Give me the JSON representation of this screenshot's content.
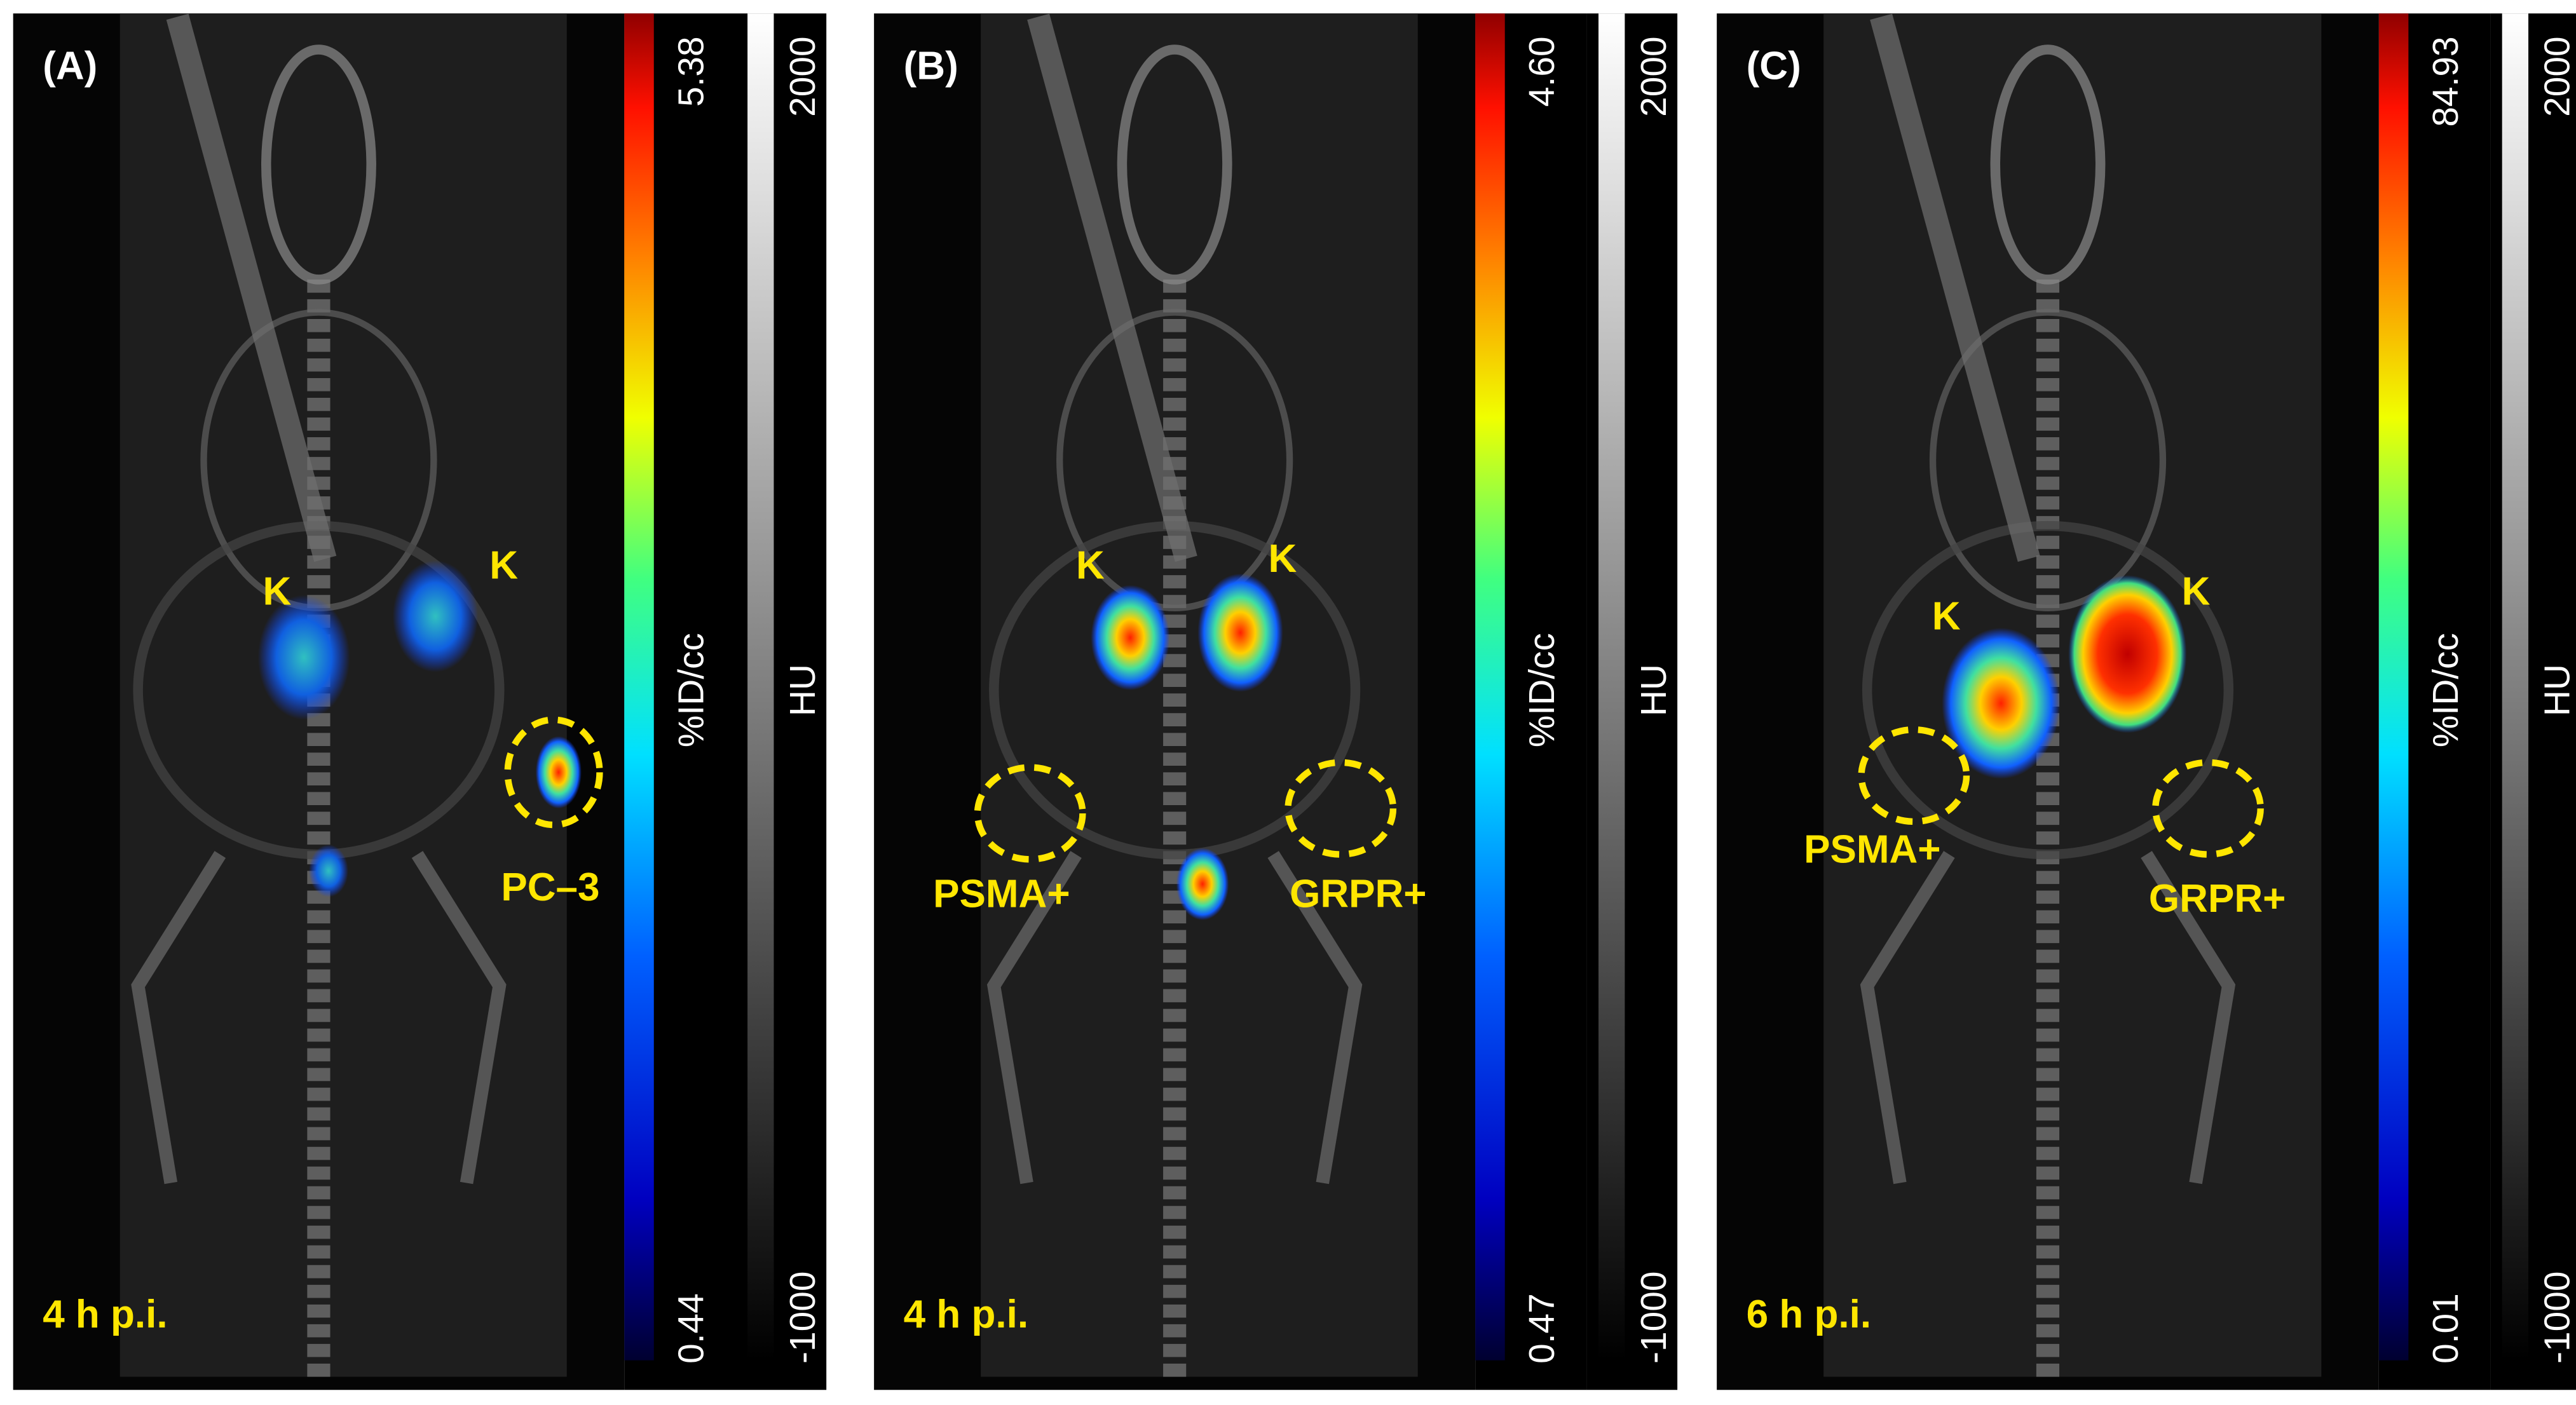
{
  "panels": [
    {
      "label": "(A)",
      "time": "4 h p.i.",
      "annotations": [
        "K",
        "K",
        "PC–3"
      ],
      "pet_scale": {
        "max": "5.38",
        "min": "0.44",
        "unit": "%ID/cc"
      },
      "ct_scale": {
        "max": "2000",
        "min": "-1000",
        "unit": "HU"
      }
    },
    {
      "label": "(B)",
      "time": "4 h p.i.",
      "annotations": [
        "K",
        "K",
        "PSMA+",
        "GRPR+"
      ],
      "pet_scale": {
        "max": "4.60",
        "min": "0.47",
        "unit": "%ID/cc"
      },
      "ct_scale": {
        "max": "2000",
        "min": "-1000",
        "unit": "HU"
      }
    },
    {
      "label": "(C)",
      "time": "6 h p.i.",
      "annotations": [
        "K",
        "K",
        "PSMA+",
        "GRPR+"
      ],
      "pet_scale": {
        "max": "84.93",
        "min": "0.01",
        "unit": "%ID/cc"
      },
      "ct_scale": {
        "max": "2000",
        "min": "-1000",
        "unit": "HU"
      }
    }
  ]
}
